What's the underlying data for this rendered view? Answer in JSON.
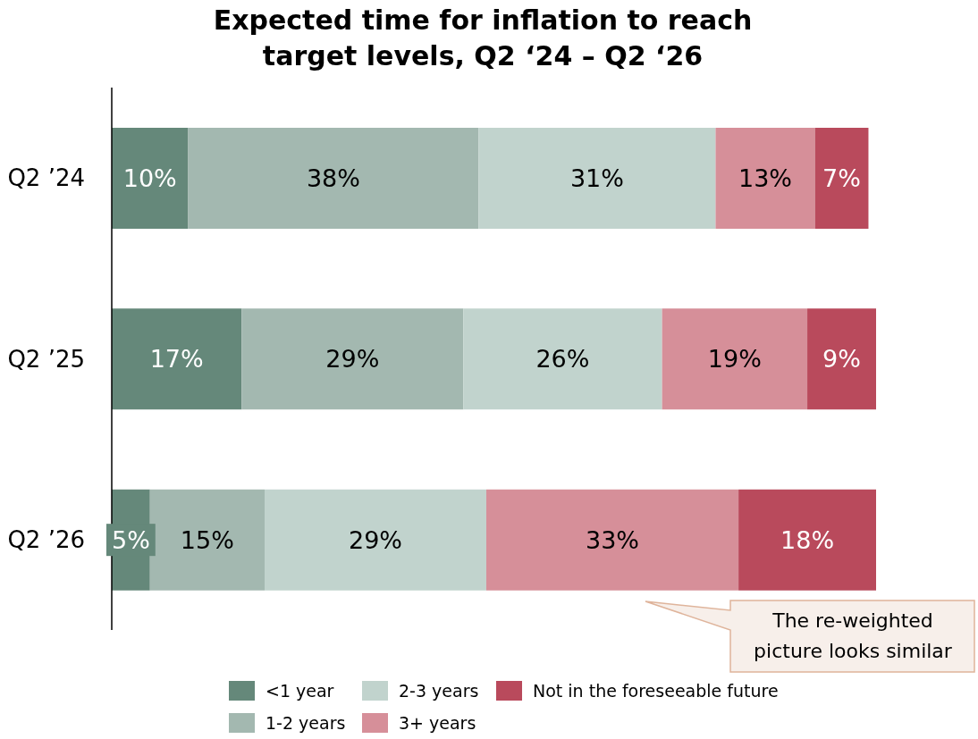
{
  "chart_data": {
    "type": "bar",
    "orientation": "horizontal",
    "stacked": true,
    "title": "Expected time for inflation to reach target levels, Q2 ‘24 – Q2 ‘26",
    "categories": [
      "Q2 ’24",
      "Q2 ’25",
      "Q2 ’26"
    ],
    "series": [
      {
        "name": "<1 year",
        "color": "#65887a",
        "values": [
          10,
          17,
          5
        ],
        "value_labels": [
          "10%",
          "17%",
          "5%"
        ]
      },
      {
        "name": "1-2 years",
        "color": "#a3b8b0",
        "values": [
          38,
          29,
          15
        ],
        "value_labels": [
          "38%",
          "29%",
          "15%"
        ]
      },
      {
        "name": "2-3 years",
        "color": "#c1d3cd",
        "values": [
          31,
          26,
          29
        ],
        "value_labels": [
          "31%",
          "26%",
          "29%"
        ]
      },
      {
        "name": "3+ years",
        "color": "#d68f99",
        "values": [
          13,
          19,
          33
        ],
        "value_labels": [
          "13%",
          "19%",
          "33%"
        ]
      },
      {
        "name": "Not in the foreseeable future",
        "color": "#b94a5c",
        "values": [
          7,
          9,
          18
        ],
        "value_labels": [
          "7%",
          "9%",
          "18%"
        ]
      }
    ],
    "legend": "bottom",
    "tick_labels": "y",
    "annotations": [
      "The re-weighted picture looks similar"
    ]
  }
}
